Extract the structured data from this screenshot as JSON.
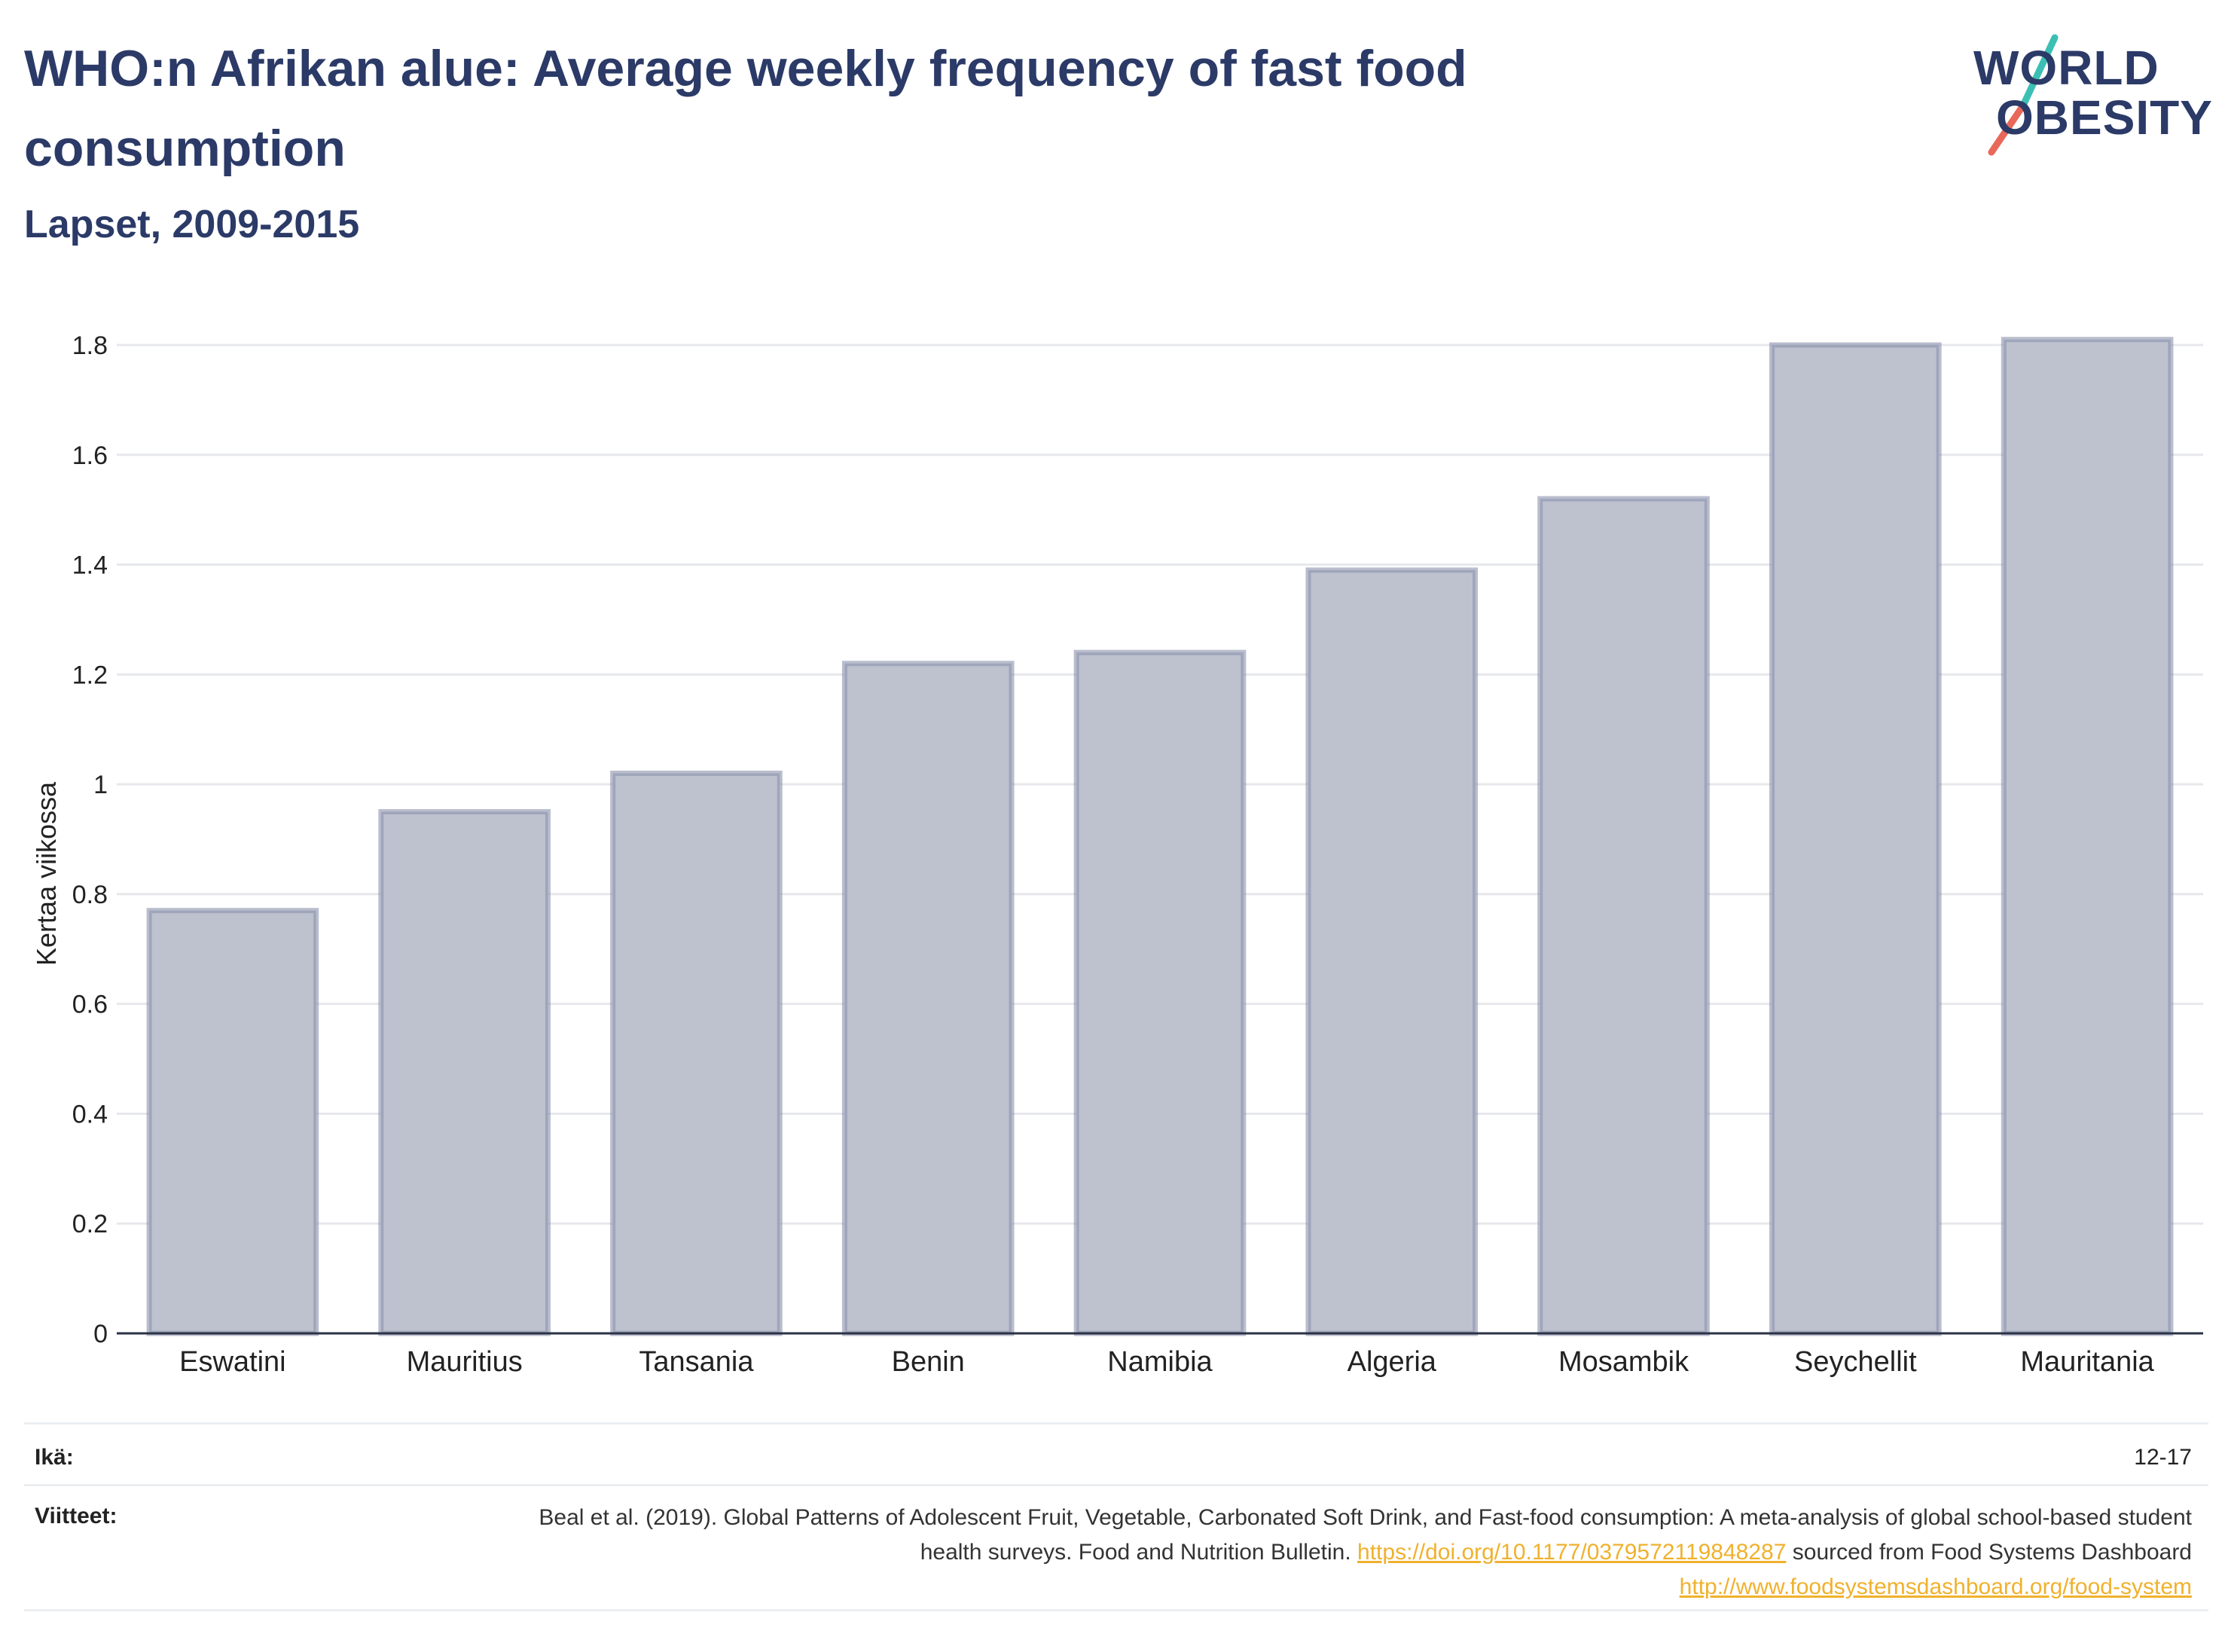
{
  "header": {
    "title": "WHO:n Afrikan alue: Average weekly frequency of fast food consumption",
    "subtitle": "Lapset, 2009-2015"
  },
  "logo": {
    "line1": "WORLD",
    "line2": "OBESITY",
    "accent_colors": [
      "#3bbfb4",
      "#e8685a"
    ]
  },
  "chart_data": {
    "type": "bar",
    "categories": [
      "Eswatini",
      "Mauritius",
      "Tansania",
      "Benin",
      "Namibia",
      "Algeria",
      "Mosambik",
      "Seychellit",
      "Mauritania"
    ],
    "values": [
      0.77,
      0.95,
      1.02,
      1.22,
      1.24,
      1.39,
      1.52,
      1.8,
      1.81
    ],
    "ylabel": "Kertaa viikossa",
    "xlabel": "",
    "ylim": [
      0,
      1.8
    ],
    "yticks": [
      "0",
      "0.2",
      "0.4",
      "0.6",
      "0.8",
      "1",
      "1.2",
      "1.4",
      "1.6",
      "1.8"
    ],
    "ytick_values": [
      0,
      0.2,
      0.4,
      0.6,
      0.8,
      1,
      1.2,
      1.4,
      1.6,
      1.8
    ],
    "grid": true,
    "bar_color": "#bec2cf",
    "bar_edge_color": "#8b91ab"
  },
  "meta": {
    "age_label": "Ikä:",
    "age_value": "12-17",
    "ref_label": "Viitteet:",
    "ref_text_1": "Beal et al. (2019). Global Patterns of Adolescent Fruit, Vegetable, Carbonated Soft Drink, and Fast-food consumption: A meta-analysis of global school-based student health surveys. Food and Nutrition Bulletin.",
    "ref_link_1": "https://doi.org/10.1177/0379572119848287",
    "ref_text_2": "sourced from Food Systems Dashboard",
    "ref_link_2": "http://www.foodsystemsdashboard.org/food-system"
  }
}
